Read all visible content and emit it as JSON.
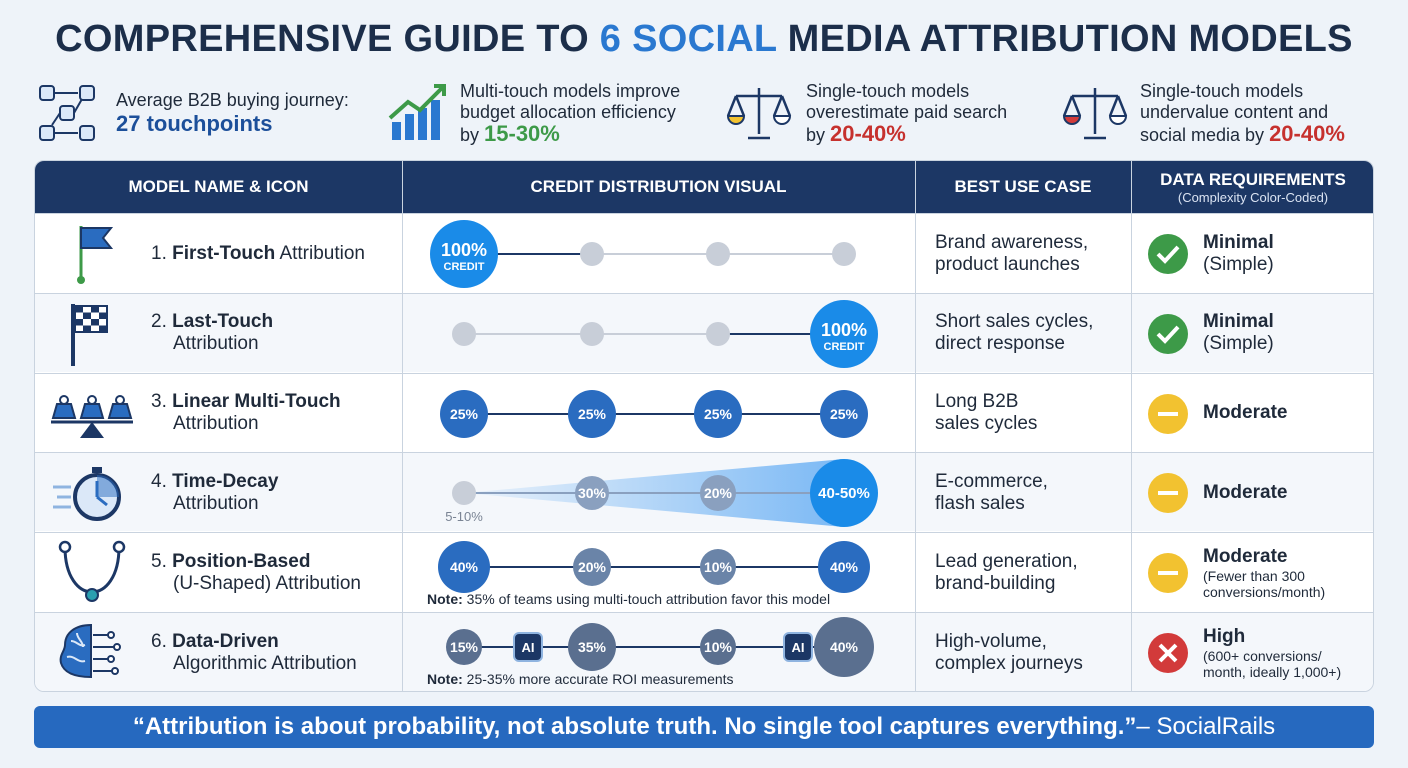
{
  "title": {
    "pre": "COMPREHENSIVE GUIDE TO ",
    "highlight": "6 SOCIAL",
    "post": " MEDIA ATTRIBUTION MODELS"
  },
  "stats": [
    {
      "line1": "Average B2B buying journey:",
      "big": "27 touchpoints",
      "icon": "journey-network-icon"
    },
    {
      "line1": "Multi-touch models improve",
      "line2": "budget allocation efficiency",
      "pre": "by ",
      "value": "15-30%",
      "icon": "growth-chart-icon"
    },
    {
      "line1": "Single-touch models",
      "line2": "overestimate paid search",
      "pre": "by ",
      "value": "20-40%",
      "icon": "balance-scale-icon"
    },
    {
      "line1": "Single-touch models",
      "line2": "undervalue content and",
      "line3pre": "social media by ",
      "value": "20-40%",
      "icon": "balance-scale-icon"
    }
  ],
  "table": {
    "headers": {
      "model": "MODEL NAME & ICON",
      "visual": "CREDIT DISTRIBUTION VISUAL",
      "use": "BEST USE CASE",
      "req": "DATA REQUIREMENTS",
      "req_sub": "(Complexity Color-Coded)"
    },
    "rows": [
      {
        "num": "1. ",
        "bold": "First-Touch",
        "rest": " Attribution",
        "rest2": "",
        "use1": "Brand awareness,",
        "use2": "product launches",
        "level": "Minimal",
        "level2": "(Simple)",
        "level_sub": "",
        "status": "ok",
        "icon": "flag-icon",
        "credits": [
          "100%",
          "",
          "",
          ""
        ],
        "credit_sub": "CREDIT",
        "note_bold": "",
        "note": ""
      },
      {
        "num": "2. ",
        "bold": "Last-Touch",
        "rest": "",
        "rest2": "Attribution",
        "use1": "Short sales cycles,",
        "use2": "direct response",
        "level": "Minimal",
        "level2": "(Simple)",
        "level_sub": "",
        "status": "ok",
        "icon": "checkered-flag-icon",
        "credits": [
          "",
          "",
          "",
          "100%"
        ],
        "credit_sub": "CREDIT",
        "note_bold": "",
        "note": ""
      },
      {
        "num": "3. ",
        "bold": "Linear Multi-Touch",
        "rest": "",
        "rest2": "Attribution",
        "use1": "Long B2B",
        "use2": "sales cycles",
        "level": "Moderate",
        "level2": "",
        "level_sub": "",
        "status": "mid",
        "icon": "weights-icon",
        "credits": [
          "25%",
          "25%",
          "25%",
          "25%"
        ],
        "note_bold": "",
        "note": ""
      },
      {
        "num": "4. ",
        "bold": "Time-Decay",
        "rest": "",
        "rest2": "Attribution",
        "use1": "E-commerce,",
        "use2": "flash sales",
        "level": "Moderate",
        "level2": "",
        "level_sub": "",
        "status": "mid",
        "icon": "stopwatch-icon",
        "credits": [
          "5-10%",
          "30%",
          "20%",
          "40-50%"
        ],
        "note_bold": "",
        "note": ""
      },
      {
        "num": "5. ",
        "bold": "Position-Based",
        "rest": "",
        "rest2": "(U-Shaped) Attribution",
        "use1": "Lead generation,",
        "use2": "brand-building",
        "level": "Moderate",
        "level2": "",
        "level_sub": "(Fewer than 300 conversions/month)",
        "status": "mid",
        "icon": "u-curve-icon",
        "credits": [
          "40%",
          "20%",
          "10%",
          "40%"
        ],
        "note_bold": "Note:",
        "note": " 35% of teams using multi-touch attribution favor this model"
      },
      {
        "num": "6. ",
        "bold": "Data-Driven",
        "rest": "",
        "rest2": "Algorithmic Attribution",
        "use1": "High-volume,",
        "use2": "complex journeys",
        "level": "High",
        "level2": "",
        "level_sub": "(600+ conversions/ month, ideally 1,000+)",
        "status": "high",
        "icon": "brain-circuit-icon",
        "credits": [
          "15%",
          "35%",
          "10%",
          "40%"
        ],
        "ai": "AI",
        "note_bold": "Note:",
        "note": " 25-35% more accurate ROI measurements"
      }
    ]
  },
  "quote": {
    "text": "“Attribution is about probability, not absolute truth. No single tool captures everything.”",
    "source": " – SocialRails"
  },
  "colors": {
    "navy": "#1c3765",
    "blue": "#2a78d0",
    "green": "#3d9a48",
    "yellow": "#f2c230",
    "red": "#d23a3a"
  }
}
